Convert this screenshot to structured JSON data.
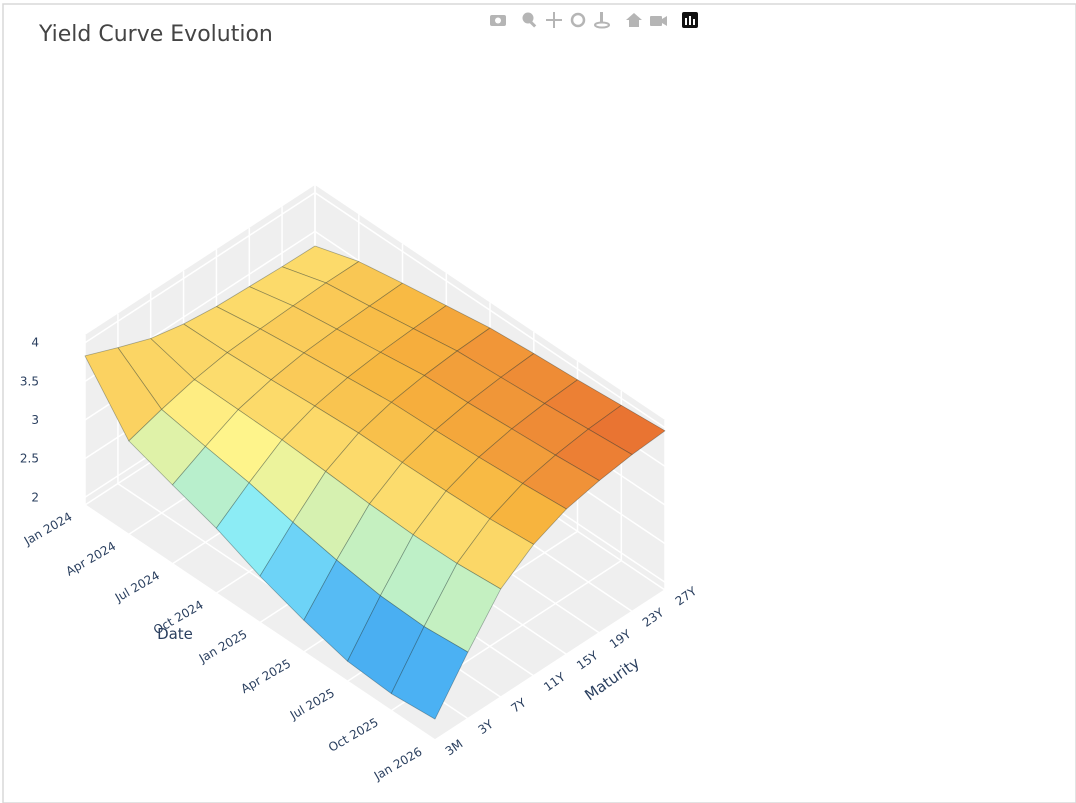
{
  "chart_data": {
    "type": "surface",
    "title": "Yield Curve Evolution",
    "x_label": "Date",
    "y_label": "Maturity",
    "x": [
      "Jan 2024",
      "Apr 2024",
      "Jul 2024",
      "Oct 2024",
      "Jan 2025",
      "Apr 2025",
      "Jul 2025",
      "Oct 2025",
      "Jan 2026"
    ],
    "y": [
      "3M",
      "3Y",
      "7Y",
      "11Y",
      "15Y",
      "19Y",
      "23Y",
      "27Y"
    ],
    "z": [
      [
        3.83,
        3.66,
        3.5,
        3.41,
        3.36,
        3.34,
        3.32,
        3.31
      ],
      [
        3.11,
        3.24,
        3.35,
        3.42,
        3.45,
        3.47,
        3.49,
        3.49
      ],
      [
        2.92,
        3.14,
        3.34,
        3.45,
        3.52,
        3.55,
        3.57,
        3.59
      ],
      [
        2.74,
        3.05,
        3.33,
        3.49,
        3.58,
        3.63,
        3.66,
        3.68
      ],
      [
        2.5,
        2.92,
        3.3,
        3.52,
        3.64,
        3.71,
        3.75,
        3.77
      ],
      [
        2.31,
        2.81,
        3.26,
        3.52,
        3.66,
        3.74,
        3.79,
        3.82
      ],
      [
        2.16,
        2.73,
        3.24,
        3.53,
        3.69,
        3.78,
        3.83,
        3.86
      ],
      [
        2.12,
        2.71,
        3.25,
        3.55,
        3.73,
        3.82,
        3.88,
        3.91
      ],
      [
        2.17,
        2.76,
        3.3,
        3.6,
        3.78,
        3.87,
        3.93,
        3.96
      ]
    ],
    "zlim": [
      1.9,
      4.1
    ],
    "zticks": [
      2,
      2.5,
      3,
      3.5,
      4
    ],
    "colorscale": [
      "#1f4fb5",
      "#3a9ff0",
      "#86ecfb",
      "#fff48a",
      "#f7b53e",
      "#e0472a"
    ],
    "grid": true
  }
}
